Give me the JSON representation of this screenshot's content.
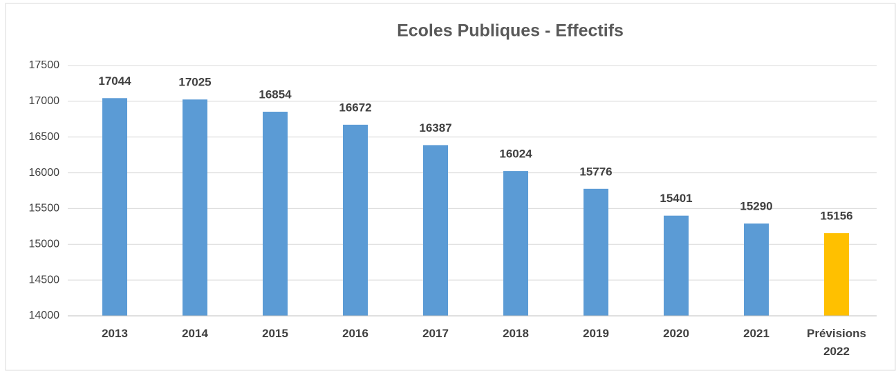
{
  "chart_data": {
    "type": "bar",
    "title": "Ecoles Publiques  -  Effectifs",
    "categories": [
      "2013",
      "2014",
      "2015",
      "2016",
      "2017",
      "2018",
      "2019",
      "2020",
      "2021",
      "Prévisions 2022"
    ],
    "values": [
      17044,
      17025,
      16854,
      16672,
      16387,
      16024,
      15776,
      15401,
      15290,
      15156
    ],
    "colors": [
      "#5b9bd5",
      "#5b9bd5",
      "#5b9bd5",
      "#5b9bd5",
      "#5b9bd5",
      "#5b9bd5",
      "#5b9bd5",
      "#5b9bd5",
      "#5b9bd5",
      "#ffc000"
    ],
    "ylim": [
      14000,
      17500
    ],
    "yticks": [
      14000,
      14500,
      15000,
      15500,
      16000,
      16500,
      17000,
      17500
    ],
    "grid": true
  }
}
